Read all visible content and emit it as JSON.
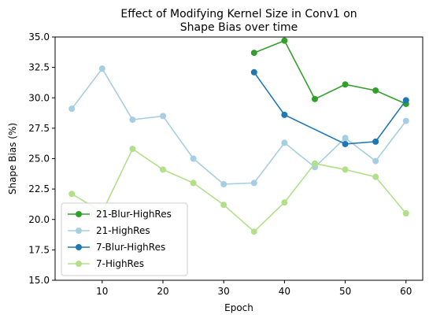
{
  "chart_data": {
    "type": "line",
    "title": [
      "Effect of Modifying Kernel Size in Conv1 on",
      "Shape Bias over time"
    ],
    "xlabel": "Epoch",
    "ylabel": "Shape Bias (%)",
    "xlim": [
      2.25,
      62.75
    ],
    "ylim": [
      15.0,
      35.0
    ],
    "xticks": [
      10,
      20,
      30,
      40,
      50,
      60
    ],
    "yticks": [
      15.0,
      17.5,
      20.0,
      22.5,
      25.0,
      27.5,
      30.0,
      32.5,
      35.0
    ],
    "legend_position": "lower-left",
    "grid": false,
    "series": [
      {
        "name": "21-Blur-HighRes",
        "color": "#33a02c",
        "x": [
          35,
          40,
          45,
          50,
          55,
          60
        ],
        "y": [
          33.7,
          34.7,
          29.9,
          31.1,
          30.6,
          29.5
        ]
      },
      {
        "name": "21-HighRes",
        "color": "#a6cee3",
        "x": [
          5,
          10,
          15,
          20,
          25,
          30,
          35,
          40,
          45,
          50,
          55,
          60
        ],
        "y": [
          29.1,
          32.4,
          28.2,
          28.5,
          25.0,
          22.9,
          23.0,
          26.3,
          24.3,
          26.7,
          24.8,
          28.1
        ]
      },
      {
        "name": "7-Blur-HighRes",
        "color": "#1f78b4",
        "x": [
          35,
          40,
          45,
          50,
          55,
          60
        ],
        "y": [
          32.1,
          28.6,
          null,
          26.2,
          26.4,
          29.8
        ]
      },
      {
        "name": "7-HighRes",
        "color": "#b2df8a",
        "x": [
          5,
          10,
          15,
          20,
          25,
          30,
          35,
          40,
          45,
          50,
          55,
          60
        ],
        "y": [
          22.1,
          20.6,
          25.8,
          24.1,
          23.0,
          21.2,
          19.0,
          21.4,
          24.6,
          24.1,
          23.5,
          20.5
        ]
      }
    ]
  }
}
